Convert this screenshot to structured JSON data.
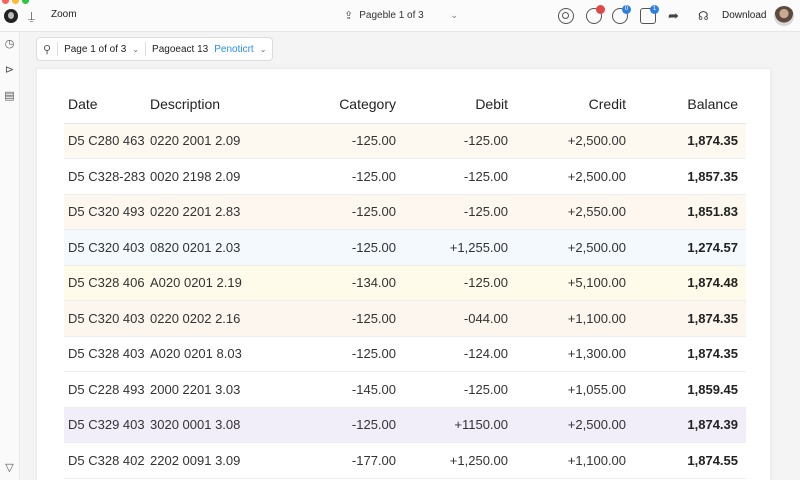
{
  "app": {
    "zoom_label": "Zoom",
    "page_indicator": "Pageble 1 of 3",
    "download_label": "Download"
  },
  "colors": {
    "traffic_red": "#ff5f57",
    "traffic_yellow": "#febc2e",
    "traffic_green": "#28c840",
    "accent_blue": "#2b8fe6",
    "badge_red": "#e04848",
    "badge_blue": "#2f7fe0"
  },
  "toolbar": {
    "page_select": "Page 1 of of 3",
    "report_label": "Pagoeact 13",
    "period_label": "Penoticrt"
  },
  "icons": {
    "left_rail": [
      "clock-icon",
      "send-icon",
      "document-icon",
      "triangle-down-icon"
    ],
    "top_right": [
      "target-icon",
      "record-icon",
      "sync-icon",
      "box-icon",
      "share-arrow-icon",
      "headset-icon"
    ]
  },
  "badges": {
    "sync": "0",
    "box": "1"
  },
  "table": {
    "headers": [
      "Date",
      "Description",
      "Category",
      "Debit",
      "Credit",
      "Balance"
    ],
    "rows": [
      {
        "date": "D5 C280 463",
        "desc": "0220 2001 2.09",
        "category": "-125.00",
        "debit": "-125.00",
        "credit": "+2,500.00",
        "balance": "1,874.35",
        "bg": "#fdf8f0"
      },
      {
        "date": "D5 C328-283",
        "desc": "0020 2198 2.09",
        "category": "-125.00",
        "debit": "-125.00",
        "credit": "+2,500.00",
        "balance": "1,857.35",
        "bg": "#ffffff"
      },
      {
        "date": "D5 C320 493",
        "desc": "0220 2201 2.83",
        "category": "-125.00",
        "debit": "-125.00",
        "credit": "+2,550.00",
        "balance": "1,851.83",
        "bg": "#fdf7ef"
      },
      {
        "date": "D5 C320 403",
        "desc": "0820 0201 2.03",
        "category": "-125.00",
        "debit": "+1,255.00",
        "credit": "+2,500.00",
        "balance": "1,274.57",
        "bg": "#f3f9fd"
      },
      {
        "date": "D5 C328 406",
        "desc": "A020 0201 2.19",
        "category": "-134.00",
        "debit": "-125.00",
        "credit": "+5,100.00",
        "balance": "1,874.48",
        "bg": "#fefbea"
      },
      {
        "date": "D5 C320 403",
        "desc": "0220 0202 2.16",
        "category": "-125.00",
        "debit": "-044.00",
        "credit": "+1,100.00",
        "balance": "1,874.35",
        "bg": "#fdf6ee"
      },
      {
        "date": "D5 C328 403",
        "desc": "A020 0201 8.03",
        "category": "-125.00",
        "debit": "-124.00",
        "credit": "+1,300.00",
        "balance": "1,874.35",
        "bg": "#ffffff"
      },
      {
        "date": "D5 C228 493",
        "desc": "2000 2201 3.03",
        "category": "-145.00",
        "debit": "-125.00",
        "credit": "+1,055.00",
        "balance": "1,859.45",
        "bg": "#ffffff"
      },
      {
        "date": "D5 C329 403",
        "desc": "3020 0001 3.08",
        "category": "-125.00",
        "debit": "+1150.00",
        "credit": "+2,500.00",
        "balance": "1,874.39",
        "bg": "#f1eefa"
      },
      {
        "date": "D5 C328 402",
        "desc": "2202 0091 3.09",
        "category": "-177.00",
        "debit": "+1,250.00",
        "credit": "+1,100.00",
        "balance": "1,874.55",
        "bg": "#ffffff"
      }
    ]
  }
}
